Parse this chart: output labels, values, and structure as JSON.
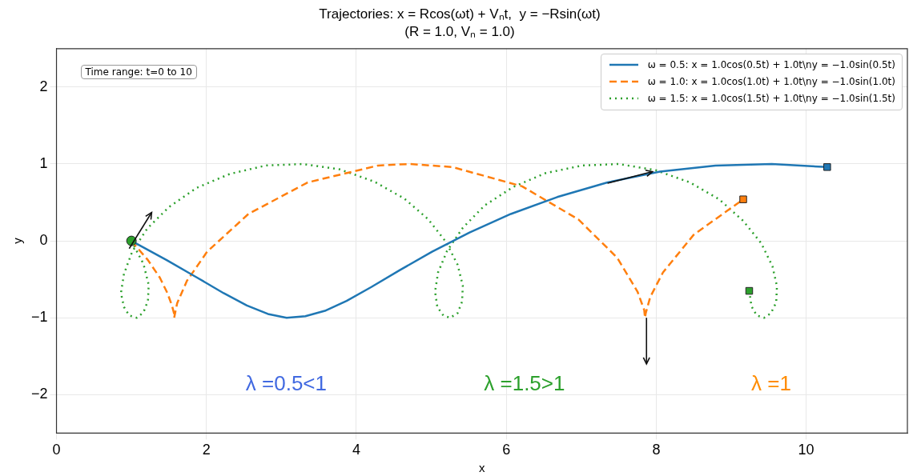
{
  "chart_data": {
    "type": "line",
    "title": "Trajectories: x = Rcos(ωt) + Vₙt,  y = −Rsin(ωt)",
    "subtitle": "(R = 1.0, Vₙ = 1.0)",
    "xlabel": "x",
    "ylabel": "y",
    "xlim": [
      0,
      11.35
    ],
    "ylim": [
      -2.5,
      2.5
    ],
    "xticks": [
      0,
      2,
      4,
      6,
      8,
      10
    ],
    "yticks": [
      -2,
      -1,
      0,
      1,
      2
    ],
    "grid": true,
    "legend": "top right",
    "annotations": [
      "Time range: t=0 to 10",
      "λ =0.5<1",
      "λ =1.5>1",
      "λ =1"
    ],
    "series": [
      {
        "name": "ω = 0.5: x = 1.0cos(0.5t) + 1.0t\\ny = −1.0sin(0.5t)",
        "color": "#1f77b4",
        "line_style": "solid",
        "marker": "none",
        "x": [
          1,
          1.47,
          1.88,
          2.23,
          2.54,
          2.82,
          3.07,
          3.32,
          3.58,
          3.87,
          4.2,
          4.58,
          5.01,
          5.51,
          6.06,
          6.68,
          7.35,
          8.05,
          8.79,
          9.54,
          10.28
        ],
        "values": [
          0,
          -0.25,
          -0.48,
          -0.68,
          -0.84,
          -0.95,
          -1,
          -0.98,
          -0.91,
          -0.78,
          -0.6,
          -0.38,
          -0.14,
          0.11,
          0.35,
          0.57,
          0.76,
          0.9,
          0.98,
          1,
          0.96
        ]
      },
      {
        "name": "ω = 1.0: x = 1.0cos(1.0t) + 1.0t\\ny = −1.0sin(1.0t)",
        "color": "#ff7f0e",
        "line_style": "dashed",
        "marker": "none",
        "x": [
          1,
          1.22,
          1.38,
          1.48,
          1.54,
          1.57,
          1.57,
          1.58,
          1.61,
          1.74,
          2.01,
          2.56,
          3.35,
          4.29,
          4.71,
          5.28,
          6.21,
          6.96,
          7.48,
          7.75,
          7.84,
          7.85,
          7.86,
          7.92,
          8.09,
          8.5,
          9.16
        ],
        "values": [
          0,
          -0.25,
          -0.48,
          -0.68,
          -0.84,
          -0.95,
          -1,
          -0.95,
          -0.81,
          -0.52,
          -0.14,
          0.35,
          0.76,
          0.98,
          1,
          0.96,
          0.71,
          0.28,
          -0.22,
          -0.66,
          -0.9,
          -1,
          -0.94,
          -0.73,
          -0.41,
          0.08,
          0.54
        ]
      },
      {
        "name": "ω = 1.5: x = 1.0cos(1.5t) + 1.0t\\ny = −1.0sin(1.5t)",
        "color": "#2ca02c",
        "line_style": "dotted",
        "marker": "none",
        "x": [
          1,
          1.16,
          1.23,
          1.22,
          1.16,
          1.07,
          0.97,
          0.9,
          0.86,
          0.9,
          1.01,
          1.21,
          1.5,
          1.87,
          2.31,
          2.79,
          3.29,
          3.78,
          4.24,
          4.64,
          4.96,
          5.2,
          5.35,
          5.42,
          5.41,
          5.35,
          5.25,
          5.16,
          5.08,
          5.05,
          5.09,
          5.21,
          5.42,
          5.71,
          6.09,
          6.52,
          7.01,
          7.5,
          7.99,
          8.45,
          8.84,
          9.16,
          9.4,
          9.55,
          9.61,
          9.6,
          9.53,
          9.44,
          9.34,
          9.27,
          9.24
        ],
        "values": [
          0,
          -0.3,
          -0.57,
          -0.78,
          -0.93,
          -1,
          -0.97,
          -0.86,
          -0.68,
          -0.43,
          -0.14,
          0.16,
          0.44,
          0.69,
          0.87,
          0.98,
          1,
          0.93,
          0.77,
          0.55,
          0.28,
          -0.02,
          -0.31,
          -0.58,
          -0.79,
          -0.94,
          -1,
          -0.97,
          -0.86,
          -0.66,
          -0.41,
          -0.13,
          0.17,
          0.46,
          0.7,
          0.88,
          0.98,
          1,
          0.92,
          0.76,
          0.54,
          0.26,
          -0.03,
          -0.33,
          -0.59,
          -0.8,
          -0.94,
          -1,
          -0.97,
          -0.85,
          -0.65
        ]
      },
      {
        "type": "scatter",
        "color": "#1f77b4",
        "marker": "square",
        "x": [
          10.28
        ],
        "values": [
          0.96
        ]
      },
      {
        "type": "scatter",
        "color": "#ff7f0e",
        "marker": "square",
        "x": [
          9.16
        ],
        "values": [
          0.54
        ]
      },
      {
        "type": "scatter",
        "color": "#2ca02c",
        "marker": "square",
        "x": [
          9.24
        ],
        "values": [
          -0.65
        ]
      },
      {
        "type": "scatter",
        "color": "#2ca02c",
        "marker": "circle",
        "x": [
          1
        ],
        "values": [
          0
        ]
      }
    ]
  }
}
